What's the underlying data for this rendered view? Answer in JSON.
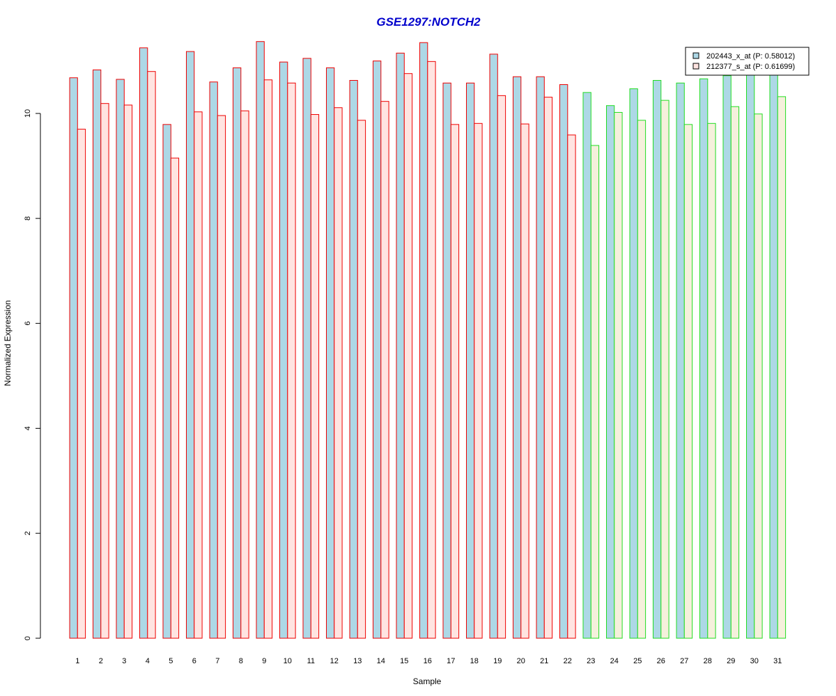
{
  "chart_data": {
    "type": "bar",
    "title": "GSE1297:NOTCH2",
    "xlabel": "Sample",
    "ylabel": "Normalized Expression",
    "ylim": [
      0,
      11.5
    ],
    "yticks": [
      "0",
      "2",
      "4",
      "6",
      "8",
      "10"
    ],
    "categories": [
      "1",
      "2",
      "3",
      "4",
      "5",
      "6",
      "7",
      "8",
      "9",
      "10",
      "11",
      "12",
      "13",
      "14",
      "15",
      "16",
      "17",
      "18",
      "19",
      "20",
      "21",
      "22",
      "23",
      "24",
      "25",
      "26",
      "27",
      "28",
      "29",
      "30",
      "31"
    ],
    "series": [
      {
        "name": "202443_x_at (P: 0.58012)",
        "values": [
          10.68,
          10.83,
          10.65,
          11.25,
          9.79,
          11.18,
          10.6,
          10.87,
          11.37,
          10.98,
          11.05,
          10.87,
          10.63,
          11.0,
          11.15,
          11.35,
          10.58,
          10.58,
          11.13,
          10.7,
          10.7,
          10.55,
          10.4,
          10.15,
          10.47,
          10.63,
          10.58,
          10.66,
          10.72,
          10.75,
          10.82
        ]
      },
      {
        "name": "212377_s_at (P: 0.61699)",
        "values": [
          9.7,
          10.19,
          10.16,
          10.8,
          9.15,
          10.03,
          9.96,
          10.05,
          10.64,
          10.58,
          9.98,
          10.11,
          9.87,
          10.23,
          10.76,
          10.99,
          9.79,
          9.81,
          10.34,
          9.8,
          10.31,
          9.59,
          9.39,
          10.02,
          9.87,
          10.25,
          9.79,
          9.81,
          10.13,
          9.99,
          10.32
        ]
      }
    ],
    "groups": [
      "red",
      "red",
      "red",
      "red",
      "red",
      "red",
      "red",
      "red",
      "red",
      "red",
      "red",
      "red",
      "red",
      "red",
      "red",
      "red",
      "red",
      "red",
      "red",
      "red",
      "red",
      "red",
      "green",
      "green",
      "green",
      "green",
      "green",
      "green",
      "green",
      "green",
      "green"
    ],
    "legend_position": "top-right",
    "grid": false,
    "colors": {
      "title": "#0000cc",
      "series1_fill": "#add8e6",
      "series2_fill": "#ffe4e1",
      "series2_fill_green": "#f5f0dc",
      "outline_red": "#ee0000",
      "outline_green": "#22dd22",
      "axis": "#000000"
    }
  }
}
